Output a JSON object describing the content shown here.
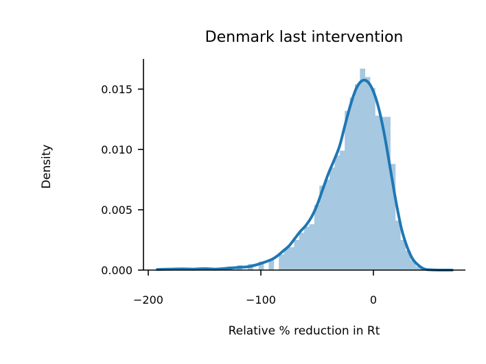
{
  "chart_data": {
    "type": "histogram+kde",
    "title": "Denmark last intervention",
    "xlabel": "Relative % reduction in Rt",
    "ylabel": "Density",
    "xlim": [
      -205,
      82
    ],
    "ylim": [
      0,
      0.0175
    ],
    "xticks": [
      -200,
      -100,
      0
    ],
    "xtick_labels": [
      "−200",
      "−100",
      "0"
    ],
    "yticks": [
      0,
      0.005,
      0.01,
      0.015
    ],
    "ytick_labels": [
      "0.000",
      "0.005",
      "0.010",
      "0.015"
    ],
    "grid": false,
    "bar_color": "#a6c8e0",
    "line_color": "#1f77b4",
    "histogram": {
      "bin_width": 4.5,
      "bins": [
        {
          "x0": -192,
          "density": 0.0
        },
        {
          "x0": -140,
          "density": 0.0002
        },
        {
          "x0": -130,
          "density": 0.0003
        },
        {
          "x0": -121,
          "density": 0.0004
        },
        {
          "x0": -111.5,
          "density": 0.0005
        },
        {
          "x0": -102,
          "density": 0.0007
        },
        {
          "x0": -93,
          "density": 0.0009
        },
        {
          "x0": -84,
          "density": 0.0013
        },
        {
          "x0": -79.5,
          "density": 0.0018
        },
        {
          "x0": -75,
          "density": 0.0019
        },
        {
          "x0": -70.5,
          "density": 0.0025
        },
        {
          "x0": -66,
          "density": 0.0031
        },
        {
          "x0": -61.5,
          "density": 0.0036
        },
        {
          "x0": -57,
          "density": 0.0038
        },
        {
          "x0": -52.5,
          "density": 0.0054
        },
        {
          "x0": -48,
          "density": 0.007
        },
        {
          "x0": -43.5,
          "density": 0.0075
        },
        {
          "x0": -39,
          "density": 0.0085
        },
        {
          "x0": -34.5,
          "density": 0.0095
        },
        {
          "x0": -30,
          "density": 0.0099
        },
        {
          "x0": -25.5,
          "density": 0.0132
        },
        {
          "x0": -21,
          "density": 0.0143
        },
        {
          "x0": -16.5,
          "density": 0.0154
        },
        {
          "x0": -12,
          "density": 0.0167
        },
        {
          "x0": -7.5,
          "density": 0.016
        },
        {
          "x0": -3,
          "density": 0.0151
        },
        {
          "x0": 1.5,
          "density": 0.0128
        },
        {
          "x0": 6,
          "density": 0.0127
        },
        {
          "x0": 10.5,
          "density": 0.0127
        },
        {
          "x0": 15,
          "density": 0.0088
        },
        {
          "x0": 19.5,
          "density": 0.0041
        },
        {
          "x0": 24,
          "density": 0.0025
        },
        {
          "x0": 28.5,
          "density": 0.0016
        },
        {
          "x0": 33,
          "density": 0.0008
        },
        {
          "x0": 37.5,
          "density": 0.0003
        },
        {
          "x0": 42,
          "density": 0.0001
        }
      ]
    },
    "kde": {
      "x": [
        -192,
        -180,
        -170,
        -160,
        -150,
        -140,
        -130,
        -120,
        -110,
        -100,
        -90,
        -85,
        -80,
        -75,
        -70,
        -65,
        -60,
        -55,
        -50,
        -45,
        -40,
        -35,
        -30,
        -25,
        -20,
        -15,
        -10,
        -5,
        0,
        5,
        10,
        15,
        20,
        25,
        30,
        35,
        40,
        45,
        50,
        60,
        70
      ],
      "y": [
        5e-05,
        8e-05,
        0.0001,
        8e-05,
        0.00012,
        8e-05,
        0.00015,
        0.00022,
        0.0003,
        0.00055,
        0.0009,
        0.0012,
        0.0016,
        0.002,
        0.0026,
        0.0032,
        0.0037,
        0.0044,
        0.0054,
        0.0067,
        0.008,
        0.0091,
        0.0103,
        0.0121,
        0.0138,
        0.0151,
        0.0157,
        0.0156,
        0.0148,
        0.0133,
        0.0111,
        0.0084,
        0.0057,
        0.0034,
        0.0019,
        0.0009,
        0.0004,
        0.0001,
        3e-05,
        0.0,
        0.0
      ]
    }
  }
}
